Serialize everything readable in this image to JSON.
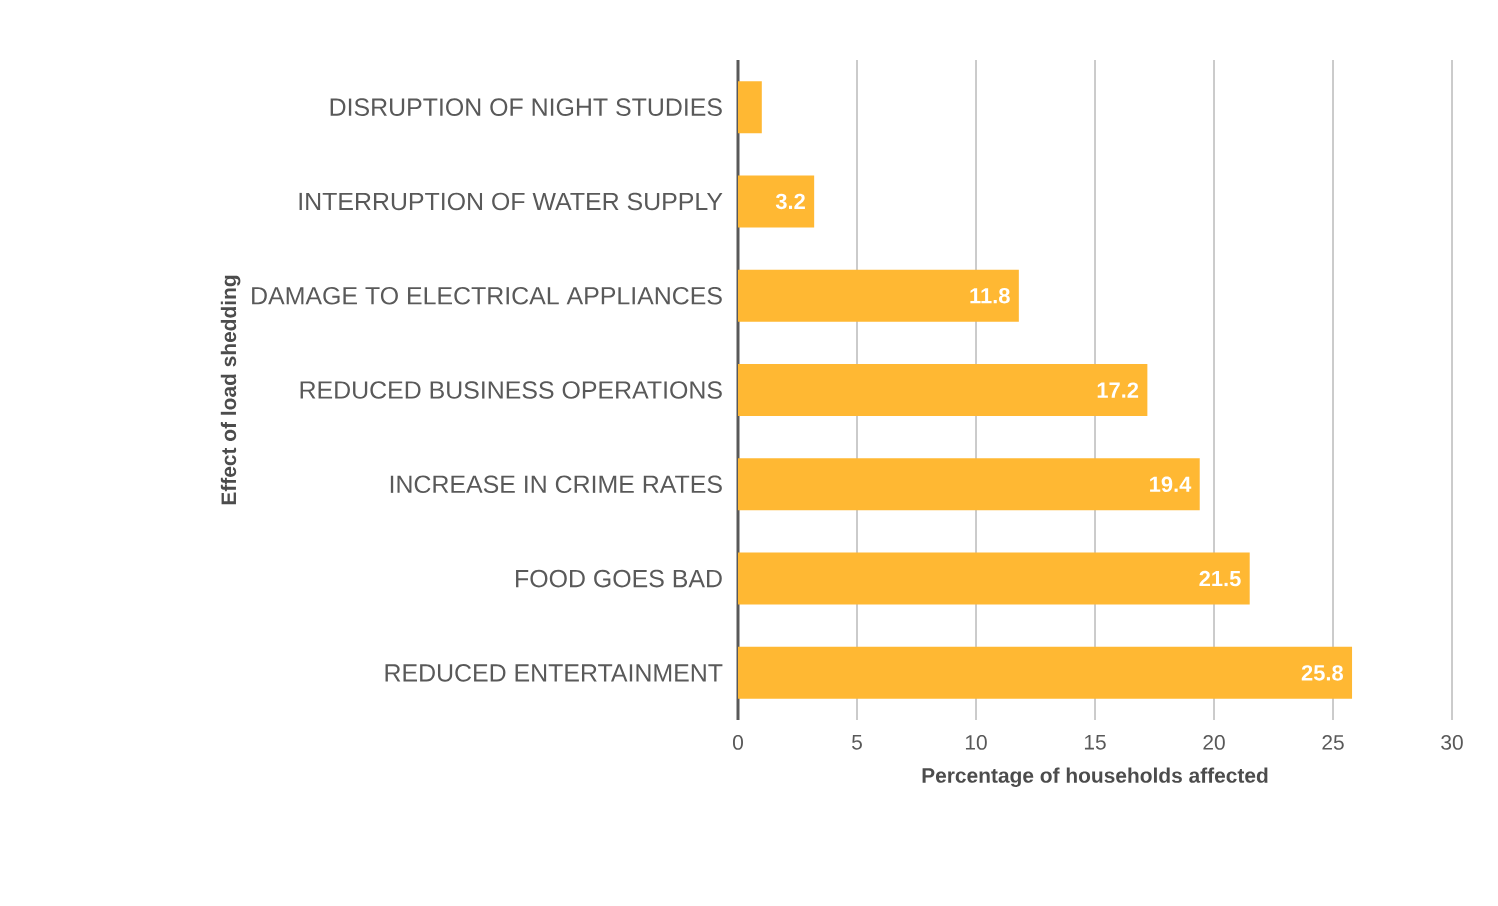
{
  "chart_data": {
    "type": "bar",
    "orientation": "horizontal",
    "xlabel": "Percentage of households affected",
    "ylabel": "Effect of load shedding",
    "categories": [
      "DISRUPTION OF NIGHT STUDIES",
      "INTERRUPTION OF WATER SUPPLY",
      "DAMAGE TO ELECTRICAL APPLIANCES",
      "REDUCED BUSINESS OPERATIONS",
      "INCREASE IN CRIME RATES",
      "FOOD GOES BAD",
      "REDUCED ENTERTAINMENT"
    ],
    "values": [
      1.0,
      3.2,
      11.8,
      17.2,
      19.4,
      21.5,
      25.8
    ],
    "value_labels": [
      null,
      "3.2",
      "11.8",
      "17.2",
      "19.4",
      "21.5",
      "25.8"
    ],
    "color": "#ffb833",
    "xlim": [
      0,
      30
    ],
    "xticks": [
      0,
      5,
      10,
      15,
      20,
      25,
      30
    ],
    "grid": "x"
  }
}
